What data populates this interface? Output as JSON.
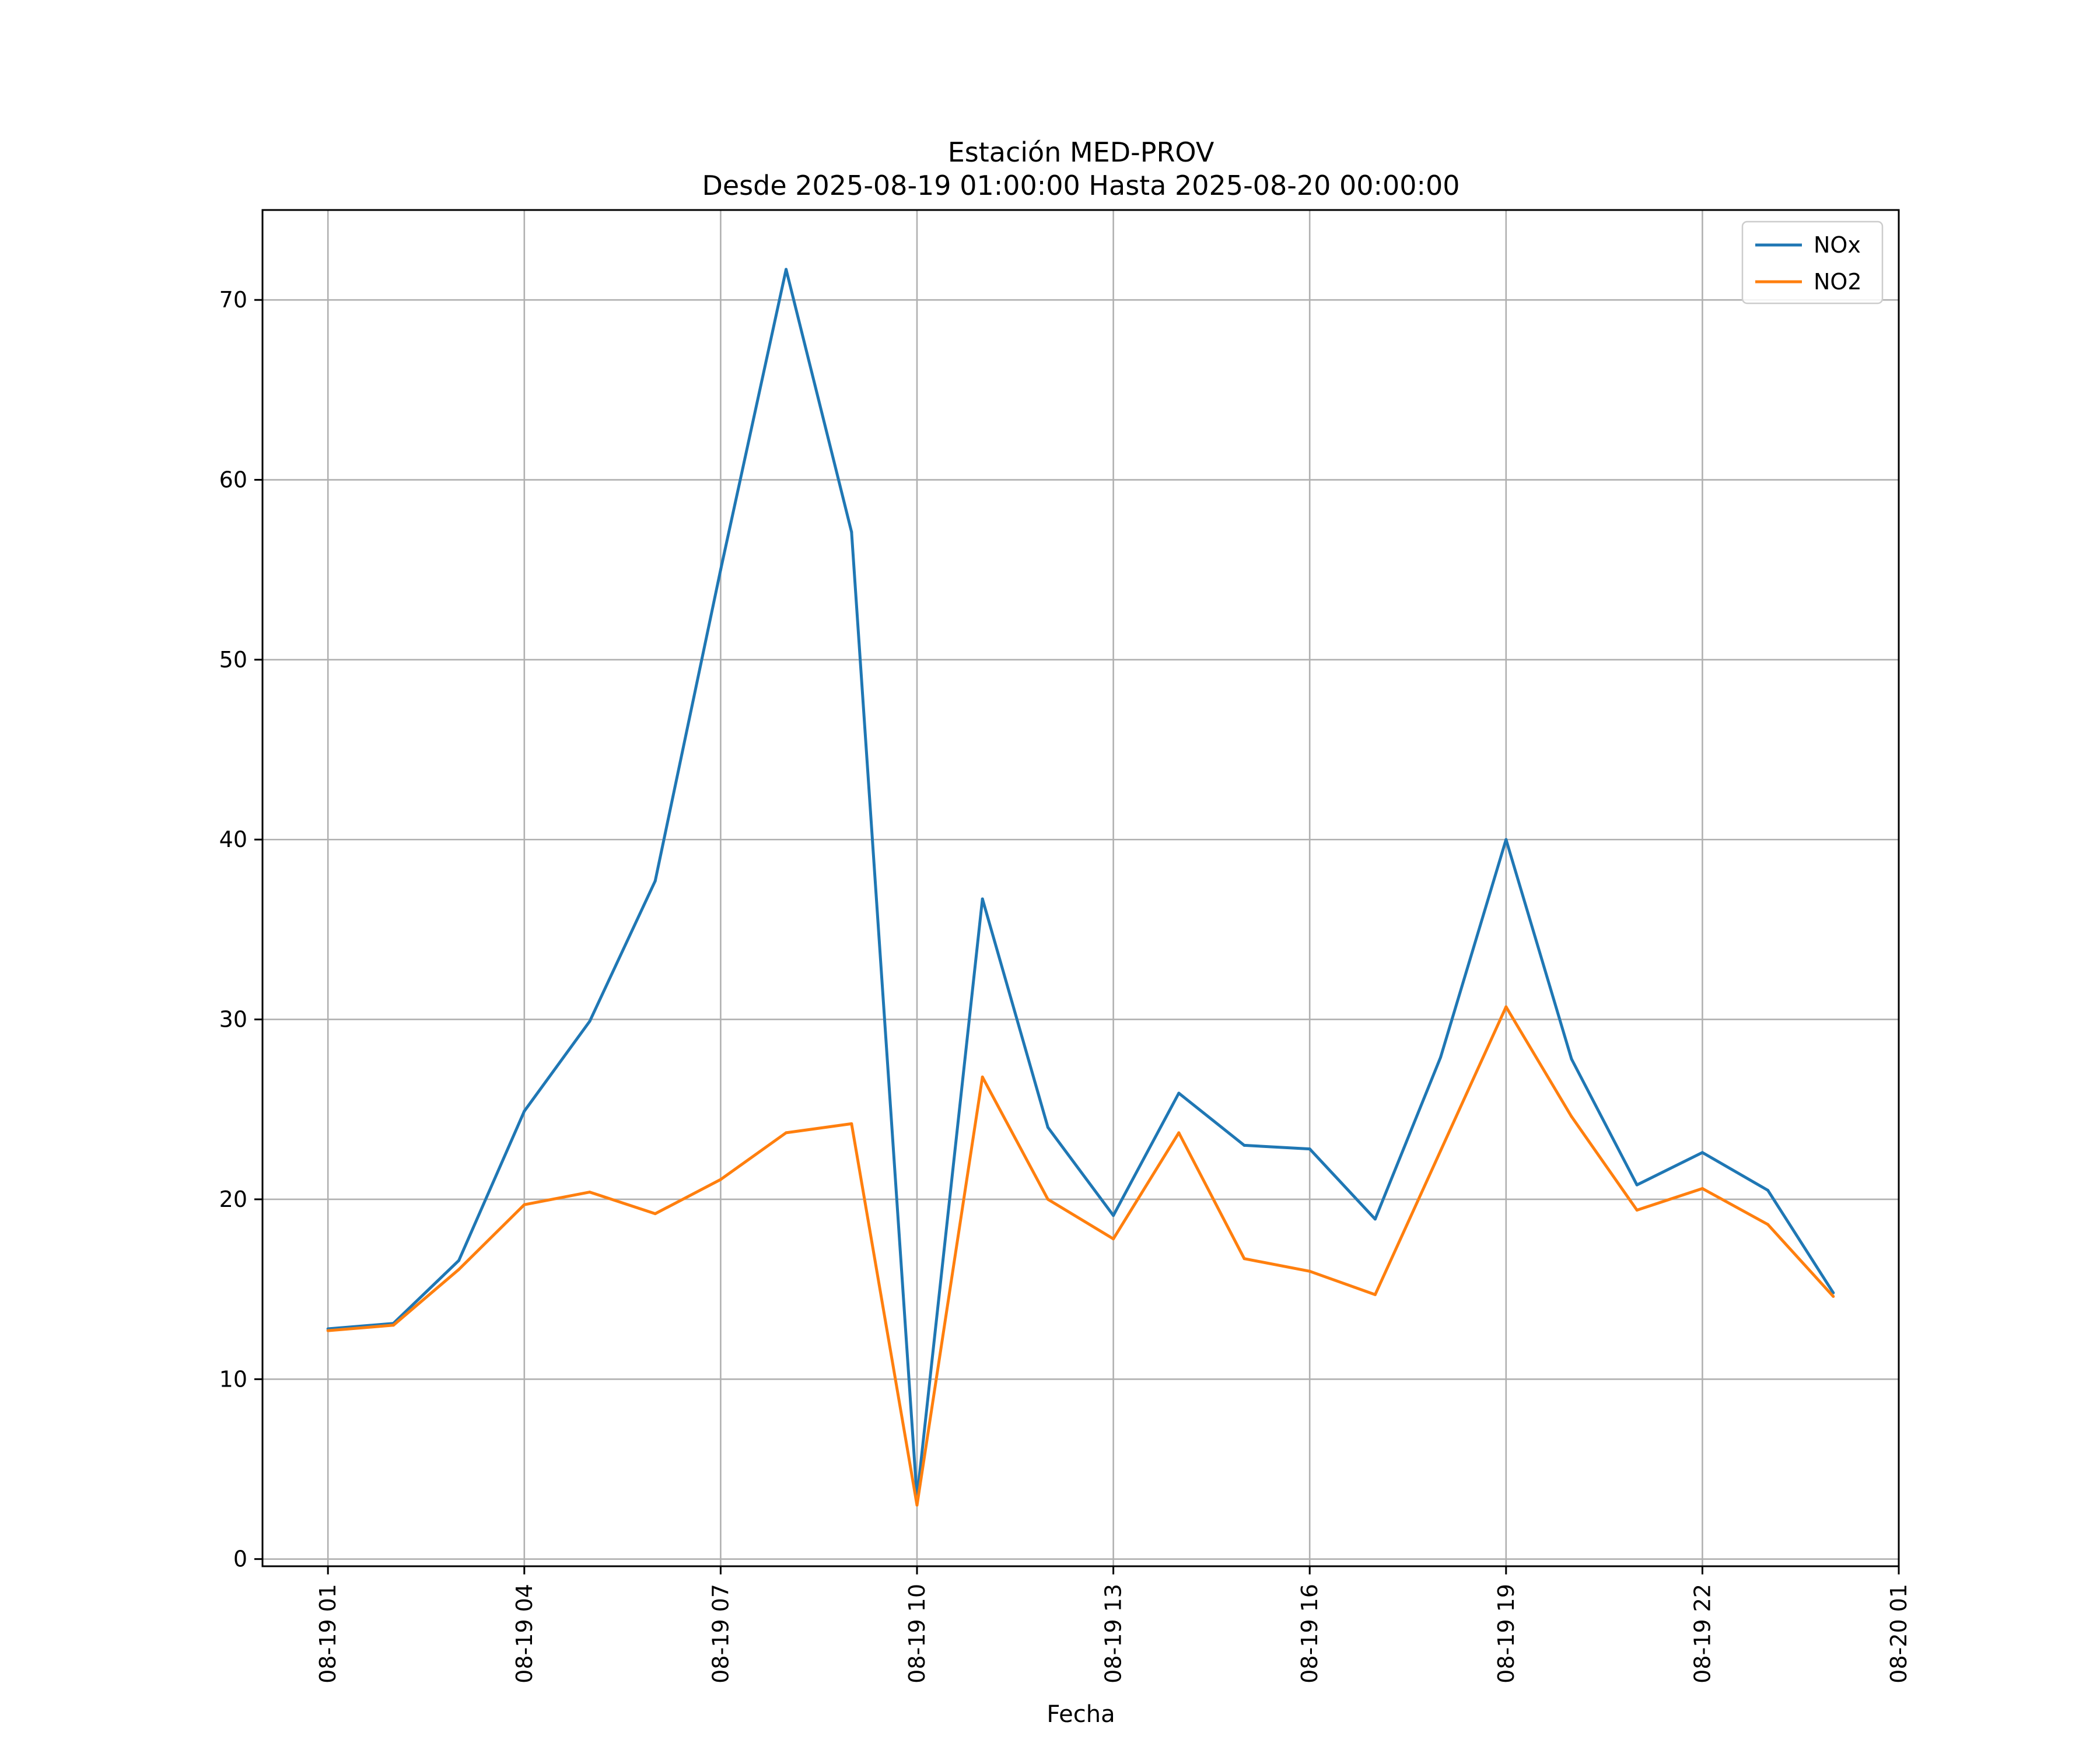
{
  "chart_data": {
    "type": "line",
    "title": "Estación MED-PROV",
    "subtitle": "Desde 2025-08-19 01:00:00 Hasta 2025-08-20 00:00:00",
    "xlabel": "Fecha",
    "ylabel": "",
    "x": [
      "2025-08-19 01:00",
      "2025-08-19 02:00",
      "2025-08-19 03:00",
      "2025-08-19 04:00",
      "2025-08-19 05:00",
      "2025-08-19 06:00",
      "2025-08-19 07:00",
      "2025-08-19 08:00",
      "2025-08-19 09:00",
      "2025-08-19 10:00",
      "2025-08-19 11:00",
      "2025-08-19 12:00",
      "2025-08-19 13:00",
      "2025-08-19 14:00",
      "2025-08-19 15:00",
      "2025-08-19 16:00",
      "2025-08-19 17:00",
      "2025-08-19 18:00",
      "2025-08-19 19:00",
      "2025-08-19 20:00",
      "2025-08-19 21:00",
      "2025-08-19 22:00",
      "2025-08-19 23:00",
      "2025-08-20 00:00"
    ],
    "x_ticks": [
      "08-19 01",
      "08-19 04",
      "08-19 07",
      "08-19 10",
      "08-19 13",
      "08-19 16",
      "08-19 19",
      "08-19 22",
      "08-20 01"
    ],
    "xlim": [
      "2025-08-19 00:00",
      "2025-08-20 01:00"
    ],
    "y_ticks": [
      0,
      10,
      20,
      30,
      40,
      50,
      60,
      70
    ],
    "ylim": [
      -0.4,
      75
    ],
    "grid": true,
    "legend_position": "top-right",
    "series": [
      {
        "name": "NOx",
        "color": "#1f77b4",
        "values": [
          12.8,
          13.1,
          16.6,
          24.9,
          29.9,
          37.7,
          55.0,
          71.7,
          57.1,
          3.4,
          36.7,
          24.0,
          19.1,
          25.9,
          23.0,
          22.8,
          18.9,
          27.9,
          40.0,
          27.8,
          20.8,
          22.6,
          20.5,
          14.8
        ]
      },
      {
        "name": "NO2",
        "color": "#ff7f0e",
        "values": [
          12.7,
          13.0,
          16.1,
          19.7,
          20.4,
          19.2,
          21.1,
          23.7,
          24.2,
          3.0,
          26.8,
          20.0,
          17.8,
          23.7,
          16.7,
          16.0,
          14.7,
          22.7,
          30.7,
          24.6,
          19.4,
          20.6,
          18.6,
          14.6
        ]
      }
    ]
  }
}
